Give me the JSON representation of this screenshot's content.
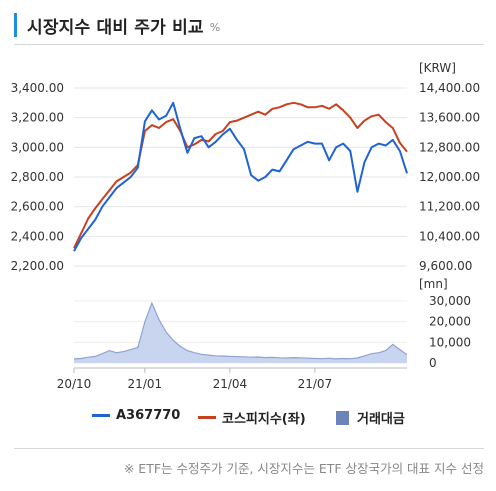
{
  "header": {
    "title": "시장지수 대비 주가 비교",
    "unit": "%"
  },
  "chart_data": {
    "type": "line",
    "left_axis": {
      "ticks": [
        "3,400.00",
        "3,200.00",
        "3,000.00",
        "2,800.00",
        "2,600.00",
        "2,400.00",
        "2,200.00"
      ],
      "tick_values": [
        3400,
        3200,
        3000,
        2800,
        2600,
        2400,
        2200
      ]
    },
    "right_axis": {
      "unit": "[KRW]",
      "ticks": [
        "14,400.00",
        "13,600.00",
        "12,800.00",
        "12,000.00",
        "11,200.00",
        "10,400.00",
        "9,600.00"
      ],
      "tick_values": [
        14400,
        13600,
        12800,
        12000,
        11200,
        10400,
        9600
      ]
    },
    "volume_axis": {
      "unit": "[mn]",
      "ticks": [
        "30,000",
        "20,000",
        "10,000",
        "0"
      ],
      "tick_values": [
        30000,
        20000,
        10000,
        0
      ]
    },
    "x_ticks": [
      "20/10",
      "21/01",
      "21/04",
      "21/07"
    ],
    "x": [
      "20/10",
      "20/10",
      "20/11",
      "20/11",
      "20/11",
      "20/11",
      "20/11",
      "20/12",
      "20/12",
      "20/12",
      "21/01",
      "21/01",
      "21/01",
      "21/01",
      "21/02",
      "21/02",
      "21/02",
      "21/02",
      "21/03",
      "21/03",
      "21/03",
      "21/03",
      "21/04",
      "21/04",
      "21/04",
      "21/04",
      "21/05",
      "21/05",
      "21/05",
      "21/05",
      "21/06",
      "21/06",
      "21/06",
      "21/06",
      "21/07",
      "21/07",
      "21/07",
      "21/07",
      "21/08",
      "21/08",
      "21/08",
      "21/08",
      "21/09",
      "21/09",
      "21/09",
      "21/09",
      "21/10",
      "21/10"
    ],
    "series": [
      {
        "name": "A367770",
        "color": "#1f63d6",
        "axis": "right",
        "values": [
          10000,
          10350,
          10600,
          10850,
          11200,
          11450,
          11700,
          11850,
          12000,
          12250,
          13500,
          13800,
          13550,
          13650,
          14000,
          13300,
          12650,
          13050,
          13100,
          12800,
          12950,
          13150,
          13300,
          13000,
          12750,
          12050,
          11900,
          12000,
          12200,
          12150,
          12450,
          12750,
          12850,
          12950,
          12900,
          12900,
          12450,
          12800,
          12900,
          12700,
          11600,
          12400,
          12800,
          12900,
          12850,
          13000,
          12700,
          12100
        ]
      },
      {
        "name": "코스피지수(좌)",
        "color": "#c8401e",
        "axis": "left",
        "values": [
          2320,
          2420,
          2520,
          2590,
          2650,
          2710,
          2770,
          2800,
          2830,
          2880,
          3110,
          3150,
          3130,
          3170,
          3190,
          3110,
          3000,
          3020,
          3050,
          3040,
          3090,
          3110,
          3170,
          3180,
          3200,
          3220,
          3240,
          3220,
          3260,
          3270,
          3290,
          3300,
          3290,
          3270,
          3270,
          3280,
          3260,
          3290,
          3250,
          3200,
          3130,
          3180,
          3210,
          3220,
          3170,
          3130,
          3030,
          2970
        ]
      },
      {
        "name": "거래대금",
        "color": "#8ea3d4",
        "axis": "volume",
        "values": [
          2000,
          2200,
          2800,
          3200,
          4500,
          6000,
          5000,
          5500,
          6500,
          7500,
          20000,
          29000,
          21000,
          15000,
          11000,
          8000,
          6000,
          5000,
          4200,
          3800,
          3500,
          3400,
          3200,
          3100,
          3000,
          2800,
          2900,
          2600,
          2700,
          2500,
          2400,
          2600,
          2500,
          2300,
          2200,
          2100,
          2300,
          2000,
          2200,
          2100,
          2400,
          3500,
          4500,
          5000,
          6000,
          9000,
          6500,
          4000
        ]
      }
    ]
  },
  "legend": {
    "series1": "A367770",
    "series2": "코스피지수(좌)",
    "series3": "거래대금"
  },
  "footnote": "※ ETF는 수정주가 기준, 시장지수는 ETF 상장국가의 대표 지수 선정",
  "colors": {
    "accent": "#1a8fe3",
    "stock": "#1f63d6",
    "index": "#c8401e",
    "volume_fill": "#c9d5ee",
    "volume_line": "#8ea3d4",
    "legend_volume": "#6d84b8"
  }
}
